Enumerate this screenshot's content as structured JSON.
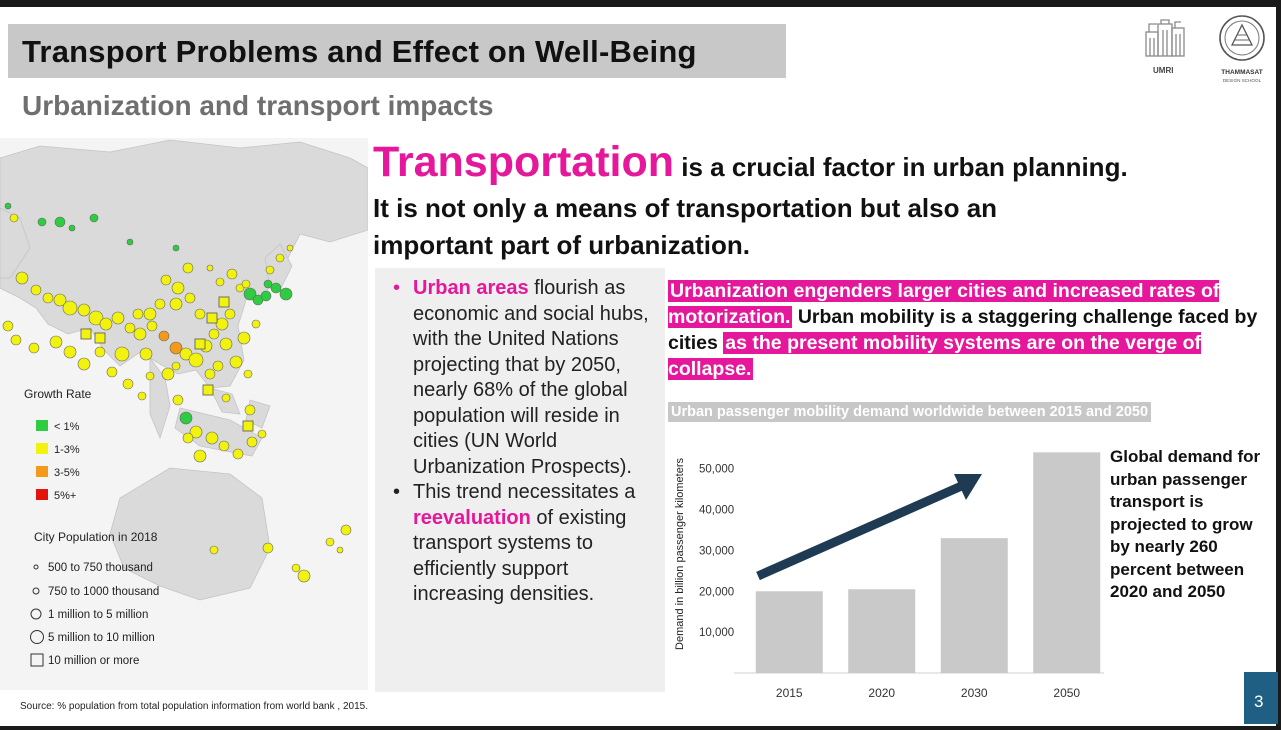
{
  "title": "Transport Problems and Effect on Well-Being",
  "subtitle": "Urbanization and transport impacts",
  "logos": {
    "umri_text": "UMRI",
    "thammasat_line1": "THAMMASAT",
    "thammasat_line2": "DESIGN SCHOOL"
  },
  "heading": {
    "big_word": "Transportation",
    "line1_rest": " is a crucial factor in urban planning.",
    "line2": "It is not only a means of transportation but also an",
    "line3": "important part of urbanization."
  },
  "bullets": [
    {
      "parts": [
        {
          "text": "Urban areas",
          "emphasis": true
        },
        {
          "text": " flourish as economic and social hubs, with the United Nations projecting that by 2050, nearly 68% of the global population will reside in cities (UN World Urbanization Prospects).",
          "emphasis": false
        }
      ]
    },
    {
      "parts": [
        {
          "text": "This trend necessitates a ",
          "emphasis": false
        },
        {
          "text": "reevaluation",
          "emphasis": true
        },
        {
          "text": " of existing transport systems to efficiently support increasing densities.",
          "emphasis": false
        }
      ]
    }
  ],
  "callout": {
    "segments": [
      {
        "text": "Urbanization engenders larger cities and increased rates of motorization.",
        "style": "highlight"
      },
      {
        "text": " Urban mobility is a staggering challenge faced by cities ",
        "style": "dark"
      },
      {
        "text": "as the present mobility systems are on the verge of collapse.",
        "style": "highlight"
      }
    ]
  },
  "map_legend": {
    "growth_title": "Growth Rate",
    "growth": [
      {
        "label": "< 1%",
        "color": "#2ecc40"
      },
      {
        "label": "1-3%",
        "color": "#f2f20f"
      },
      {
        "label": "3-5%",
        "color": "#f39a1b"
      },
      {
        "label": "5%+",
        "color": "#e3140f"
      }
    ],
    "population_title": "City Population in 2018",
    "population": [
      {
        "label": "500 to 750 thousand",
        "symbol": "dot-small"
      },
      {
        "label": "750 to 1000 thousand",
        "symbol": "dot-medium"
      },
      {
        "label": "1 million to 5 million",
        "symbol": "circle"
      },
      {
        "label": "5 million to 10 million",
        "symbol": "circle-large"
      },
      {
        "label": "10 million or more",
        "symbol": "square"
      }
    ]
  },
  "chart_data": {
    "type": "bar",
    "title": "Urban passenger mobility demand worldwide between 2015 and 2050",
    "ylabel": "Demand in billion passenger kilometers",
    "categories": [
      "2015",
      "2020",
      "2030",
      "2050"
    ],
    "values": [
      20000,
      20500,
      33000,
      54000
    ],
    "yticks": [
      "10,000",
      "20,000",
      "30,000",
      "40,000",
      "50,000"
    ],
    "ylim": [
      0,
      58000
    ],
    "bar_color": "#c9c9c9",
    "arrow_color": "#1f3b53",
    "annotation": "Global demand for urban passenger transport is projected to grow by nearly 260 percent between 2020 and 2050"
  },
  "source": "Source: % population from total population information from world bank , 2015.",
  "page_number": "3",
  "colors": {
    "accent_pink": "#e5179a",
    "page_box": "#1f5f83"
  }
}
